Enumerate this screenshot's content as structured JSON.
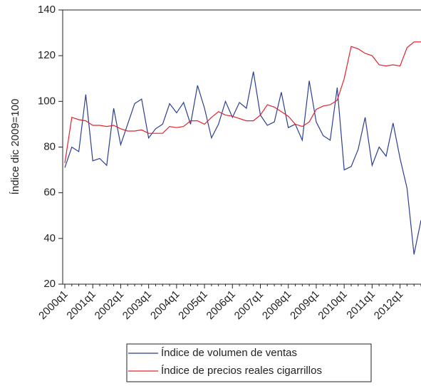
{
  "chart_data": {
    "type": "line",
    "y_label": "Índice dic 2009=100",
    "categories": [
      "2000q1",
      null,
      null,
      null,
      "2001q1",
      null,
      null,
      null,
      "2002q1",
      null,
      null,
      null,
      "2003q1",
      null,
      null,
      null,
      "2004q1",
      null,
      null,
      null,
      "2005q1",
      null,
      null,
      null,
      "2006q1",
      null,
      null,
      null,
      "2007q1",
      null,
      null,
      null,
      "2008q1",
      null,
      null,
      null,
      "2009q1",
      null,
      null,
      null,
      "2010q1",
      null,
      null,
      null,
      "2011q1",
      null,
      null,
      null,
      "2012q1",
      null,
      null,
      null
    ],
    "series": [
      {
        "name": "Índice de volumen de ventas",
        "color": "#2b3f91",
        "values": [
          71,
          80,
          78,
          103,
          74,
          75,
          72,
          97,
          81,
          90,
          99,
          101,
          84,
          88,
          90,
          99,
          95,
          99.5,
          90,
          107,
          97,
          84,
          90,
          100,
          93,
          99.5,
          97,
          113,
          94,
          89.5,
          91,
          104,
          88.5,
          90,
          83,
          109,
          91,
          85,
          83,
          106,
          70,
          71.5,
          79,
          93,
          72,
          80,
          76,
          90.5,
          75,
          62,
          33,
          48
        ]
      },
      {
        "name": "Índice de precios reales cigarrillos",
        "color": "#e3232b",
        "values": [
          73,
          93,
          92,
          91.5,
          89.5,
          89.5,
          89,
          89.5,
          88,
          87,
          87,
          87.5,
          86,
          86,
          86,
          89,
          88.5,
          89,
          91.5,
          91.5,
          90,
          93,
          95.5,
          94,
          93.5,
          92.5,
          91.5,
          91.5,
          94,
          98.5,
          97.5,
          95.5,
          93.5,
          90,
          89,
          91,
          96.5,
          98,
          98.5,
          100.5,
          110,
          124,
          123,
          121,
          120,
          116,
          115.5,
          116,
          115.5,
          123.5,
          126,
          126
        ]
      }
    ],
    "ylim": [
      20,
      140
    ],
    "yticks": [
      20,
      40,
      60,
      80,
      100,
      120,
      140
    ]
  }
}
